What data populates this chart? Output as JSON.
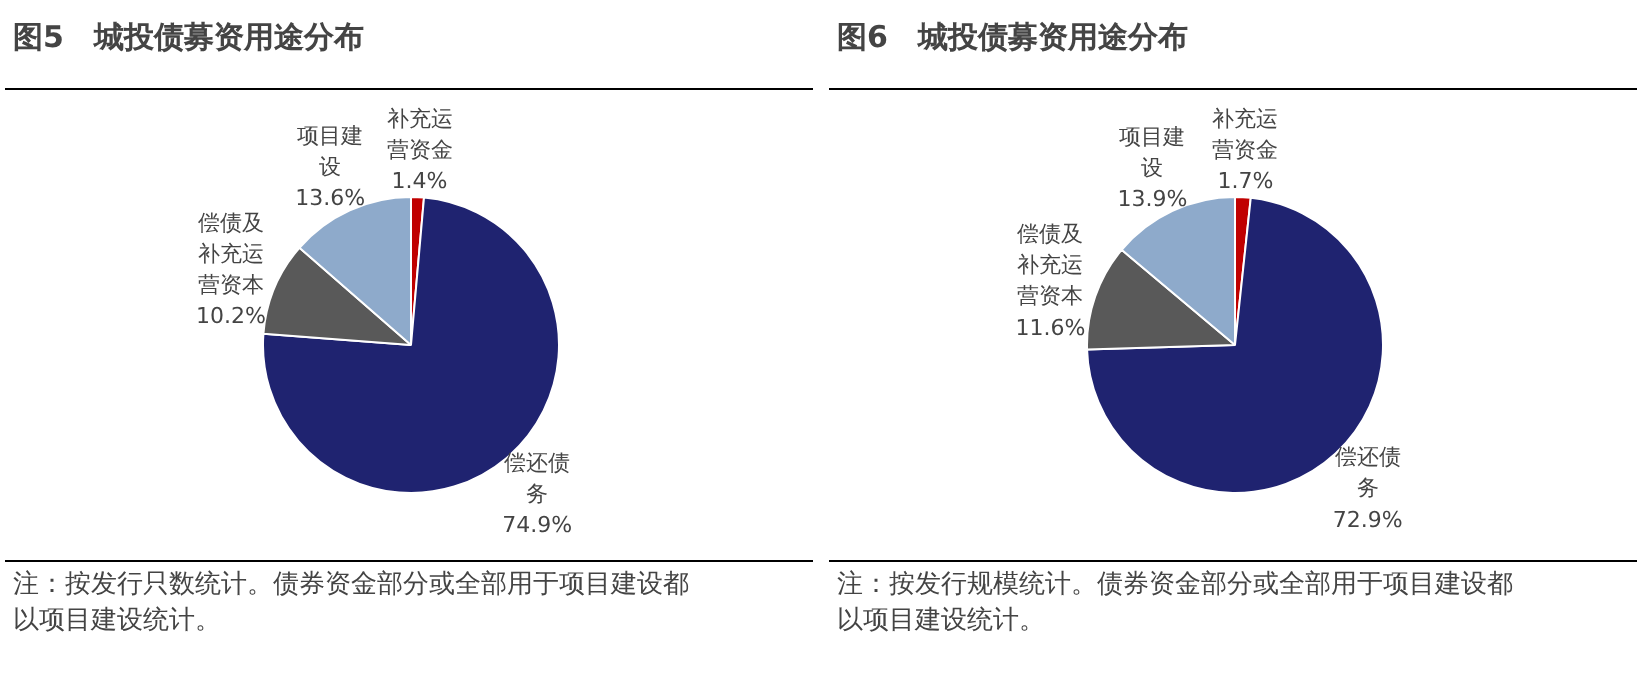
{
  "chart_data": [
    {
      "type": "pie",
      "title": "图5　城投债募资用途分布",
      "categories": [
        "补充运营资金",
        "偿还债务",
        "偿债及补充运营资本",
        "项目建设"
      ],
      "values": [
        1.4,
        74.9,
        10.2,
        13.6
      ],
      "colors": [
        "#c00000",
        "#1f2370",
        "#595959",
        "#8eaacb"
      ],
      "value_labels": [
        "1.4%",
        "74.9%",
        "10.2%",
        "13.6%"
      ],
      "annotations": [
        "注：按发行只数统计。债券资金部分或全部用于项目建设都",
        "以项目建设统计。"
      ]
    },
    {
      "type": "pie",
      "title": "图6　城投债募资用途分布",
      "categories": [
        "补充运营资金",
        "偿还债务",
        "偿债及补充运营资本",
        "项目建设"
      ],
      "values": [
        1.7,
        72.9,
        11.6,
        13.9
      ],
      "colors": [
        "#c00000",
        "#1f2370",
        "#595959",
        "#8eaacb"
      ],
      "value_labels": [
        "1.7%",
        "72.9%",
        "11.6%",
        "13.9%"
      ],
      "annotations": [
        "注：按发行规模统计。债券资金部分或全部用于项目建设都",
        "以项目建设统计。"
      ]
    }
  ]
}
